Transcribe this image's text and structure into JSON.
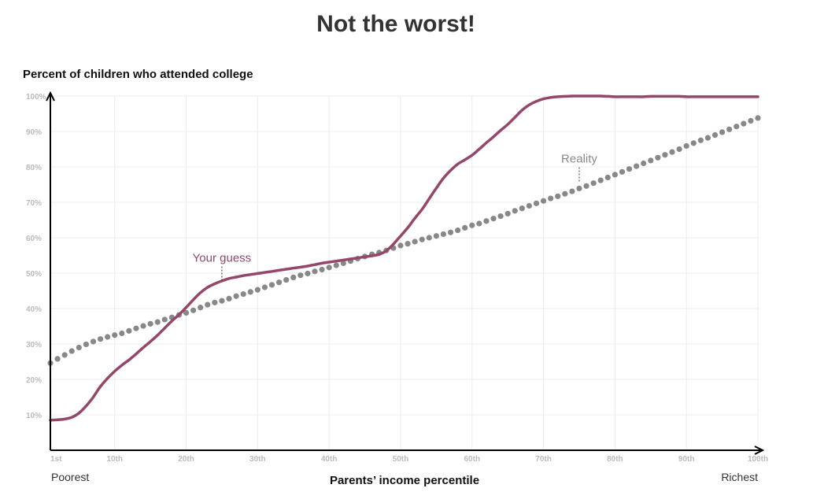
{
  "chart_data": {
    "type": "line",
    "title": "Not the worst!",
    "ylabel": "Percent of children who attended college",
    "xlabel": "Parents’ income percentile",
    "x_left_note": "Poorest",
    "x_right_note": "Richest",
    "xlim": [
      1,
      100
    ],
    "ylim": [
      0,
      100
    ],
    "x_ticks": [
      1,
      10,
      20,
      30,
      40,
      50,
      60,
      70,
      80,
      90,
      100
    ],
    "x_tick_labels": [
      "1st",
      "10th",
      "20th",
      "30th",
      "40th",
      "50th",
      "60th",
      "70th",
      "80th",
      "90th",
      "100th"
    ],
    "y_ticks": [
      10,
      20,
      30,
      40,
      50,
      60,
      70,
      80,
      90,
      100
    ],
    "y_tick_labels": [
      "10%",
      "20%",
      "30%",
      "40%",
      "50%",
      "60%",
      "70%",
      "80%",
      "90%",
      "100%"
    ],
    "grid": true,
    "series": [
      {
        "name": "Reality",
        "style": "dotted",
        "color": "#888888",
        "x": [
          1,
          2,
          3,
          4,
          5,
          6,
          7,
          8,
          9,
          10,
          11,
          12,
          13,
          14,
          15,
          16,
          17,
          18,
          19,
          20,
          21,
          22,
          23,
          24,
          25,
          26,
          27,
          28,
          29,
          30,
          31,
          32,
          33,
          34,
          35,
          36,
          37,
          38,
          39,
          40,
          41,
          42,
          43,
          44,
          45,
          46,
          47,
          48,
          49,
          50,
          51,
          52,
          53,
          54,
          55,
          56,
          57,
          58,
          59,
          60,
          61,
          62,
          63,
          64,
          65,
          66,
          67,
          68,
          69,
          70,
          71,
          72,
          73,
          74,
          75,
          76,
          77,
          78,
          79,
          80,
          81,
          82,
          83,
          84,
          85,
          86,
          87,
          88,
          89,
          90,
          91,
          92,
          93,
          94,
          95,
          96,
          97,
          98,
          99,
          100
        ],
        "y": [
          24.6,
          25.8,
          26.9,
          28.0,
          29.0,
          29.9,
          30.7,
          31.4,
          32.0,
          32.5,
          33.0,
          33.7,
          34.4,
          35.1,
          35.7,
          36.2,
          36.9,
          37.5,
          38.2,
          38.8,
          39.5,
          40.3,
          41.1,
          41.7,
          42.2,
          42.8,
          43.5,
          44.1,
          44.7,
          45.3,
          46.0,
          46.7,
          47.4,
          48.1,
          48.8,
          49.4,
          49.9,
          50.5,
          51.0,
          51.6,
          52.2,
          52.8,
          53.4,
          54.1,
          54.7,
          55.3,
          55.8,
          56.4,
          57.1,
          57.8,
          58.3,
          58.9,
          59.5,
          60.0,
          60.5,
          61.0,
          61.5,
          62.1,
          62.8,
          63.5,
          64.0,
          64.7,
          65.4,
          66.1,
          66.8,
          67.6,
          68.3,
          69.0,
          69.7,
          70.4,
          71.1,
          71.7,
          72.4,
          73.1,
          73.9,
          74.6,
          75.4,
          76.2,
          77.0,
          77.8,
          78.6,
          79.4,
          80.2,
          81.0,
          81.8,
          82.6,
          83.4,
          84.2,
          85.0,
          85.9,
          86.7,
          87.5,
          88.2,
          89.0,
          89.8,
          90.6,
          91.4,
          92.2,
          93.0,
          93.8
        ]
      },
      {
        "name": "Your guess",
        "style": "solid",
        "color": "#94476a",
        "x": [
          1,
          2,
          3,
          4,
          5,
          6,
          7,
          8,
          9,
          10,
          11,
          12,
          13,
          14,
          15,
          16,
          17,
          18,
          19,
          20,
          21,
          22,
          23,
          24,
          25,
          26,
          27,
          28,
          29,
          30,
          31,
          32,
          33,
          34,
          35,
          36,
          37,
          38,
          39,
          40,
          41,
          42,
          43,
          44,
          45,
          46,
          47,
          48,
          49,
          50,
          51,
          52,
          53,
          54,
          55,
          56,
          57,
          58,
          59,
          60,
          61,
          62,
          63,
          64,
          65,
          66,
          67,
          68,
          69,
          70,
          71,
          72,
          73,
          74,
          75,
          76,
          77,
          78,
          79,
          80,
          81,
          82,
          83,
          84,
          85,
          86,
          87,
          88,
          89,
          90,
          91,
          92,
          93,
          94,
          95,
          96,
          97,
          98,
          99,
          100
        ],
        "y": [
          8.5,
          8.6,
          8.8,
          9.3,
          10.5,
          12.5,
          15.0,
          18.0,
          20.3,
          22.3,
          24.0,
          25.5,
          27.2,
          29.0,
          30.7,
          32.5,
          34.5,
          36.5,
          38.3,
          40.3,
          42.5,
          44.5,
          46.0,
          47.0,
          47.8,
          48.5,
          48.9,
          49.3,
          49.6,
          49.9,
          50.2,
          50.5,
          50.8,
          51.1,
          51.4,
          51.7,
          52.0,
          52.4,
          52.8,
          53.1,
          53.4,
          53.7,
          54.0,
          54.3,
          54.6,
          54.9,
          55.3,
          56.3,
          58.2,
          60.5,
          62.8,
          65.5,
          68.0,
          71.0,
          74.0,
          76.8,
          79.0,
          80.8,
          82.0,
          83.3,
          85.0,
          86.8,
          88.5,
          90.3,
          92.0,
          94.0,
          96.0,
          97.5,
          98.5,
          99.2,
          99.6,
          99.8,
          99.9,
          100.0,
          100.0,
          100.0,
          100.0,
          100.0,
          99.9,
          99.8,
          99.8,
          99.8,
          99.8,
          99.8,
          99.9,
          99.9,
          99.9,
          99.9,
          99.9,
          99.8,
          99.8,
          99.8,
          99.8,
          99.8,
          99.8,
          99.8,
          99.8,
          99.8,
          99.8,
          99.8
        ]
      }
    ],
    "annotations": [
      {
        "text": "Your guess",
        "color": "#94476a",
        "x": 25,
        "y": 47
      },
      {
        "text": "Reality",
        "color": "#888888",
        "x": 75,
        "y": 75
      }
    ]
  }
}
